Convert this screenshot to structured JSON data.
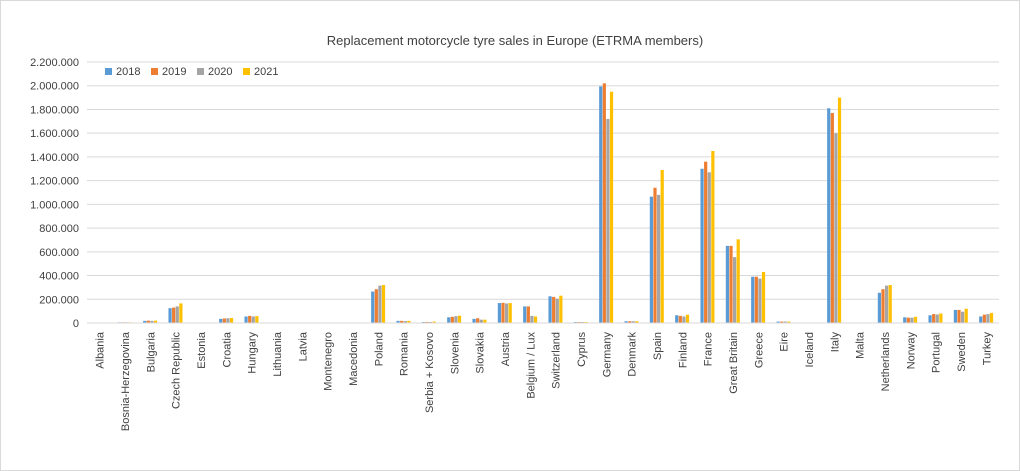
{
  "chart_data": {
    "type": "bar",
    "title": "Replacement motorcycle tyre sales in Europe (ETRMA members)",
    "xlabel": "",
    "ylabel": "",
    "ylim": [
      0,
      2200000
    ],
    "y_ticks": [
      0,
      200000,
      400000,
      600000,
      800000,
      1000000,
      1200000,
      1400000,
      1600000,
      1800000,
      2000000,
      2200000
    ],
    "y_tick_labels": [
      "0",
      "200.000",
      "400.000",
      "600.000",
      "800.000",
      "1.000.000",
      "1.200.000",
      "1.400.000",
      "1.600.000",
      "1.800.000",
      "2.000.000",
      "2.200.000"
    ],
    "grid": true,
    "legend_position": "top-left",
    "categories": [
      "Albania",
      "Bosnia-Herzegovina",
      "Bulgaria",
      "Czech Republic",
      "Estonia",
      "Croatia",
      "Hungary",
      "Lithuania",
      "Latvia",
      "Montenegro",
      "Macedonia",
      "Poland",
      "Romania",
      "Serbia + Kosovo",
      "Slovenia",
      "Slovakia",
      "Austria",
      "Belgium / Lux",
      "Switzerland",
      "Cyprus",
      "Germany",
      "Denmark",
      "Spain",
      "Finland",
      "France",
      "Great Britain",
      "Greece",
      "Eire",
      "Iceland",
      "Italy",
      "Malta",
      "Netherlands",
      "Norway",
      "Portugal",
      "Sweden",
      "Turkey"
    ],
    "series": [
      {
        "name": "2018",
        "color": "#5b9bd5",
        "values": [
          3000,
          6000,
          18000,
          125000,
          3000,
          35000,
          55000,
          2000,
          1000,
          1000,
          1000,
          265000,
          18000,
          8000,
          48000,
          35000,
          168000,
          140000,
          225000,
          8000,
          1995000,
          15000,
          1065000,
          65000,
          1300000,
          650000,
          390000,
          12000,
          1000,
          1810000,
          1000,
          255000,
          48000,
          65000,
          110000,
          55000
        ]
      },
      {
        "name": "2019",
        "color": "#ed7d31",
        "values": [
          3000,
          6000,
          20000,
          130000,
          3000,
          38000,
          60000,
          2000,
          1000,
          1000,
          1000,
          285000,
          18000,
          9000,
          52000,
          40000,
          170000,
          140000,
          220000,
          8000,
          2020000,
          15000,
          1140000,
          60000,
          1360000,
          650000,
          390000,
          12000,
          1000,
          1770000,
          1000,
          285000,
          45000,
          75000,
          110000,
          70000
        ]
      },
      {
        "name": "2020",
        "color": "#a5a5a5",
        "values": [
          3000,
          6000,
          18000,
          140000,
          3000,
          40000,
          55000,
          2000,
          1000,
          1000,
          1000,
          315000,
          16000,
          9000,
          58000,
          28000,
          165000,
          60000,
          205000,
          8000,
          1720000,
          15000,
          1080000,
          55000,
          1270000,
          555000,
          375000,
          12000,
          1000,
          1600000,
          1000,
          315000,
          45000,
          72000,
          95000,
          75000
        ]
      },
      {
        "name": "2021",
        "color": "#ffc000",
        "values": [
          3000,
          6000,
          20000,
          165000,
          3000,
          42000,
          58000,
          2000,
          1000,
          1000,
          1000,
          320000,
          18000,
          12000,
          62000,
          28000,
          168000,
          55000,
          230000,
          8000,
          1950000,
          15000,
          1290000,
          70000,
          1450000,
          705000,
          430000,
          12000,
          1000,
          1900000,
          1000,
          320000,
          52000,
          80000,
          120000,
          85000
        ]
      }
    ]
  }
}
